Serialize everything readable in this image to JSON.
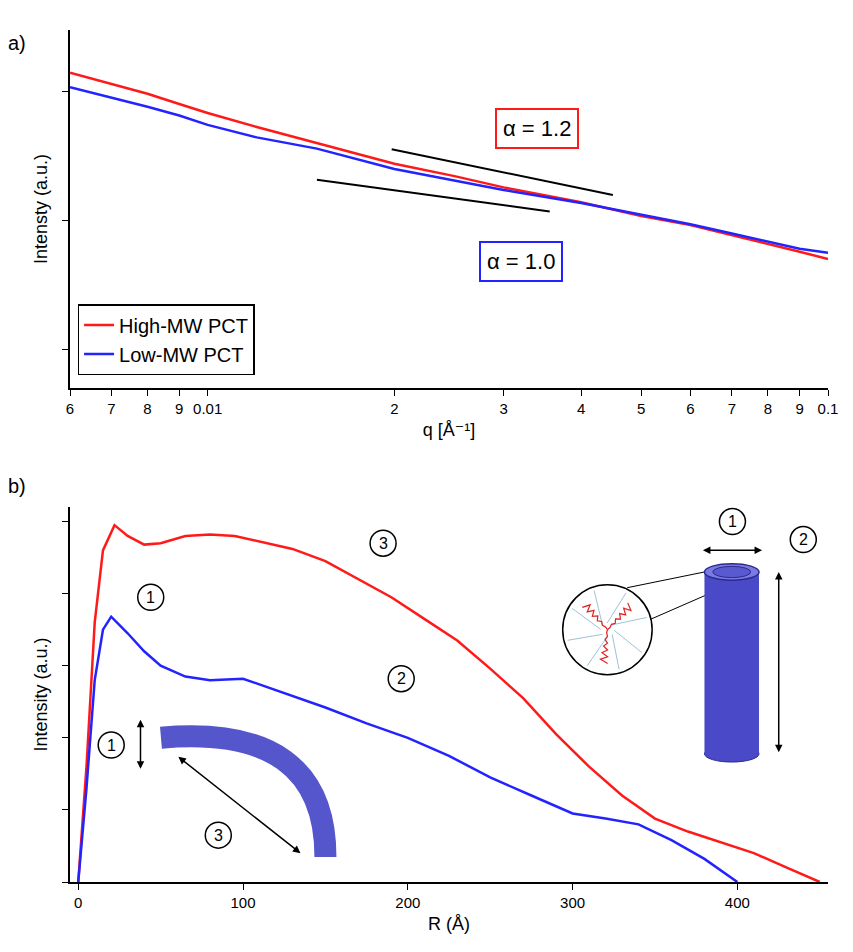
{
  "chart_data": [
    {
      "type": "line",
      "panel": "a)",
      "log": true,
      "grid": false,
      "legend": "lower left",
      "tick_labels": "x",
      "x_label": "q [Å⁻¹]",
      "y_label": "Intensty (a.u.)",
      "xlim": [
        0.006,
        0.1
      ],
      "ylim": [
        0.05,
        30
      ],
      "xticks": [
        {
          "value": 0.006,
          "label": "6"
        },
        {
          "value": 0.007,
          "label": "7"
        },
        {
          "value": 0.008,
          "label": "8"
        },
        {
          "value": 0.009,
          "label": "9"
        },
        0.01,
        {
          "value": 0.02,
          "label": "2"
        },
        {
          "value": 0.03,
          "label": "3"
        },
        {
          "value": 0.04,
          "label": "4"
        },
        {
          "value": 0.05,
          "label": "5"
        },
        {
          "value": 0.06,
          "label": "6"
        },
        {
          "value": 0.07,
          "label": "7"
        },
        {
          "value": 0.08,
          "label": "8"
        },
        {
          "value": 0.09,
          "label": "9"
        },
        0.1
      ],
      "yticks": [
        0.1,
        1,
        10
      ],
      "x": [
        0.006,
        0.007,
        0.008,
        0.009,
        0.01,
        0.012,
        0.015,
        0.02,
        0.025,
        0.03,
        0.04,
        0.05,
        0.06,
        0.07,
        0.08,
        0.09,
        0.1
      ],
      "series": [
        {
          "name": "High-MW PCT",
          "color": "#ff1a1a",
          "values": [
            14,
            11.5,
            9.6,
            8.0,
            6.8,
            5.3,
            4.0,
            2.75,
            2.2,
            1.8,
            1.38,
            1.08,
            0.92,
            0.77,
            0.66,
            0.57,
            0.5
          ]
        },
        {
          "name": "Low-MW PCT",
          "color": "#2323ff",
          "values": [
            10.8,
            9.0,
            7.6,
            6.5,
            5.5,
            4.4,
            3.6,
            2.5,
            2.05,
            1.72,
            1.36,
            1.1,
            0.93,
            0.79,
            0.68,
            0.6,
            0.56
          ]
        }
      ],
      "guides": [
        {
          "x": [
            0.0198,
            0.045
          ],
          "y": [
            3.56,
            1.57
          ],
          "color": "#000000"
        },
        {
          "x": [
            0.015,
            0.0356
          ],
          "y": [
            2.06,
            1.17
          ],
          "color": "#000000"
        }
      ],
      "annotations": [
        {
          "text": "α = 1.2",
          "x": 0.034,
          "y": 5.2,
          "color": "#ff1a1a"
        },
        {
          "text": "α = 1.0",
          "x": 0.032,
          "y": 0.475,
          "color": "#2323ff"
        }
      ]
    },
    {
      "type": "line",
      "panel": "b)",
      "grid": false,
      "tick_labels": "x",
      "x_label": "R (Å)",
      "y_label": "Intensity (a.u.)",
      "xlim": [
        -5,
        455
      ],
      "ylim": [
        0,
        5.2
      ],
      "xticks": [
        0,
        100,
        200,
        300,
        400
      ],
      "yticks": [
        0,
        1,
        2,
        3,
        4,
        5
      ],
      "series": [
        {
          "name": "High-MW PCT",
          "color": "#ff1a1a",
          "x": [
            0,
            5,
            10,
            15,
            22,
            30,
            40,
            50,
            65,
            80,
            95,
            110,
            130,
            150,
            170,
            190,
            210,
            230,
            250,
            270,
            290,
            310,
            330,
            350,
            370,
            390,
            410,
            430,
            450
          ],
          "values": [
            0,
            1.6,
            3.6,
            4.6,
            4.95,
            4.8,
            4.68,
            4.7,
            4.8,
            4.82,
            4.8,
            4.72,
            4.62,
            4.45,
            4.2,
            3.95,
            3.65,
            3.35,
            2.96,
            2.55,
            2.05,
            1.6,
            1.2,
            0.88,
            0.7,
            0.55,
            0.4,
            0.2,
            0
          ]
        },
        {
          "name": "Low-MW PCT",
          "color": "#2323ff",
          "x": [
            0,
            5,
            10,
            15,
            20,
            30,
            40,
            50,
            65,
            80,
            100,
            125,
            150,
            175,
            200,
            225,
            250,
            275,
            300,
            320,
            340,
            360,
            380,
            400
          ],
          "values": [
            0,
            1.3,
            2.8,
            3.5,
            3.68,
            3.45,
            3.2,
            3.0,
            2.85,
            2.8,
            2.82,
            2.62,
            2.42,
            2.2,
            2.0,
            1.75,
            1.45,
            1.2,
            0.95,
            0.88,
            0.8,
            0.58,
            0.32,
            0
          ]
        }
      ],
      "annotations": [
        {
          "text": "1",
          "x": 44,
          "y": 3.95
        },
        {
          "text": "3",
          "x": 185,
          "y": 4.7
        },
        {
          "text": "2",
          "x": 196,
          "y": 2.82
        },
        {
          "text": "1",
          "x": 397,
          "y": 5.0
        },
        {
          "text": "2",
          "x": 440,
          "y": 4.75
        },
        {
          "text": "1",
          "x": 20,
          "y": 1.9
        },
        {
          "text": "3",
          "x": 85,
          "y": 0.65
        }
      ]
    }
  ]
}
